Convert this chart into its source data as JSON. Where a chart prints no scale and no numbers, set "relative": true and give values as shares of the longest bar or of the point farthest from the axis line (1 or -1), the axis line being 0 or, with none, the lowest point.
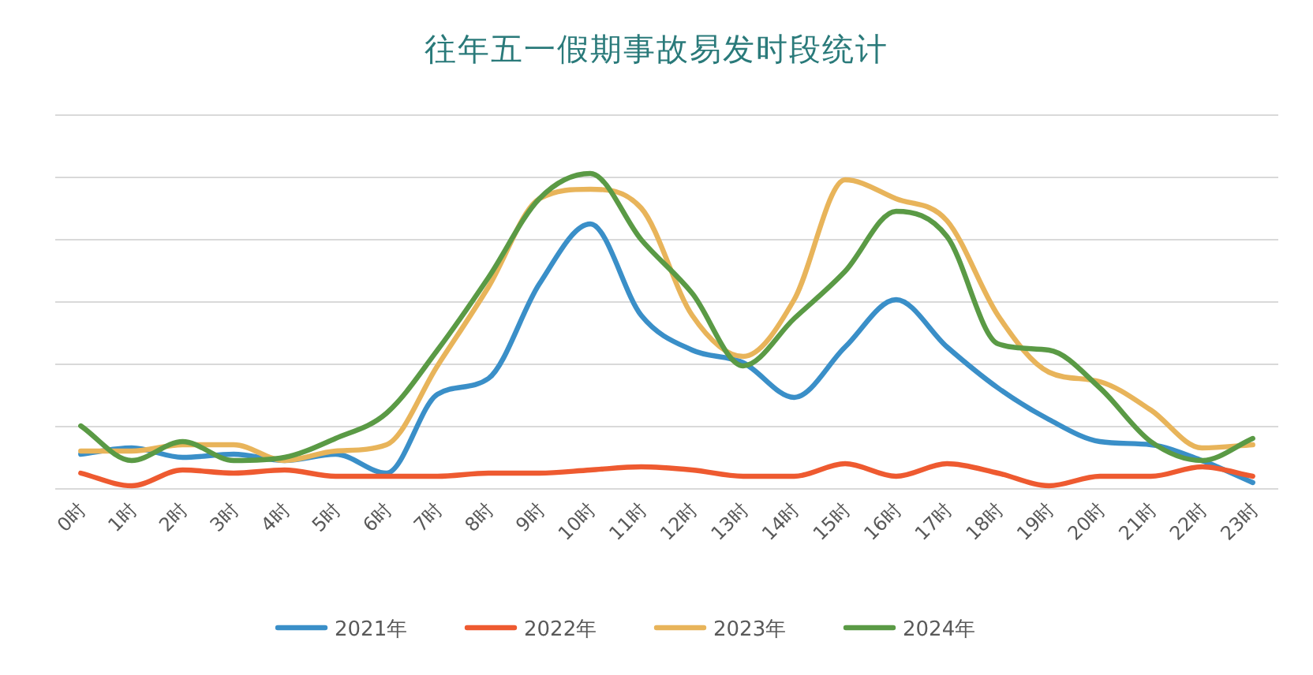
{
  "chart_data": {
    "type": "line",
    "title": "往年五一假期事故易发时段统计",
    "relative": true,
    "grid": "y",
    "legend": "bottom",
    "categories": [
      "0时",
      "1时",
      "2时",
      "3时",
      "4时",
      "5时",
      "6时",
      "7时",
      "8时",
      "9时",
      "10时",
      "11时",
      "12时",
      "13时",
      "14时",
      "15时",
      "16时",
      "17时",
      "18时",
      "19时",
      "20时",
      "21时",
      "22时",
      "23时"
    ],
    "series": [
      {
        "name": "2021年",
        "color": "#3a8fc8",
        "values": [
          0.11,
          0.13,
          0.1,
          0.11,
          0.09,
          0.11,
          0.05,
          0.3,
          0.35,
          0.65,
          0.84,
          0.55,
          0.44,
          0.4,
          0.29,
          0.45,
          0.6,
          0.45,
          0.32,
          0.22,
          0.15,
          0.14,
          0.09,
          0.02
        ]
      },
      {
        "name": "2022年",
        "color": "#ee5a30",
        "values": [
          0.05,
          0.01,
          0.06,
          0.05,
          0.06,
          0.04,
          0.04,
          0.04,
          0.05,
          0.05,
          0.06,
          0.07,
          0.06,
          0.04,
          0.04,
          0.08,
          0.04,
          0.08,
          0.05,
          0.01,
          0.04,
          0.04,
          0.07,
          0.04
        ]
      },
      {
        "name": "2023年",
        "color": "#e8b45a",
        "values": [
          0.12,
          0.12,
          0.14,
          0.14,
          0.09,
          0.12,
          0.14,
          0.39,
          0.64,
          0.92,
          0.95,
          0.89,
          0.55,
          0.42,
          0.6,
          0.98,
          0.92,
          0.85,
          0.55,
          0.37,
          0.34,
          0.25,
          0.13,
          0.14
        ]
      },
      {
        "name": "2024年",
        "color": "#5a9a45",
        "values": [
          0.2,
          0.09,
          0.15,
          0.09,
          0.1,
          0.16,
          0.24,
          0.44,
          0.67,
          0.92,
          1.0,
          0.79,
          0.62,
          0.39,
          0.54,
          0.69,
          0.88,
          0.8,
          0.46,
          0.44,
          0.32,
          0.15,
          0.09,
          0.16
        ]
      }
    ]
  }
}
